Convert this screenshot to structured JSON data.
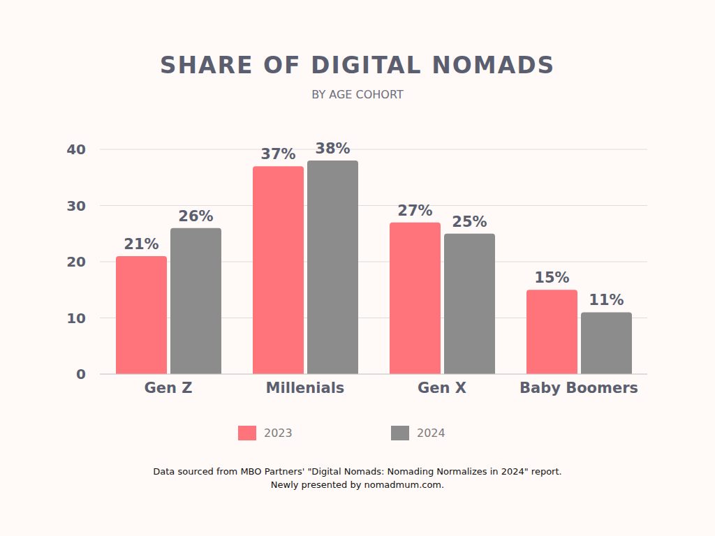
{
  "chart_data": {
    "type": "bar",
    "title": "SHARE OF DIGITAL NOMADS",
    "subtitle": "BY AGE COHORT",
    "categories": [
      "Gen Z",
      "Millenials",
      "Gen X",
      "Baby Boomers"
    ],
    "series": [
      {
        "name": "2023",
        "color": "#ff737b",
        "values": [
          21,
          37,
          27,
          15
        ],
        "value_labels": [
          "21%",
          "37%",
          "27%",
          "15%"
        ]
      },
      {
        "name": "2024",
        "color": "#8c8c8c",
        "values": [
          26,
          38,
          25,
          11
        ],
        "value_labels": [
          "26%",
          "38%",
          "25%",
          "11%"
        ]
      }
    ],
    "ylim": [
      0,
      40
    ],
    "yticks": [
      0,
      10,
      20,
      30,
      40
    ],
    "grid": true,
    "legend": "bottom",
    "data_labels": true,
    "notes": [
      "Data sourced from MBO Partners' \"Digital Nomads: Nomading Normalizes in 2024\" report.",
      "Newly presented by nomadmum.com."
    ]
  }
}
